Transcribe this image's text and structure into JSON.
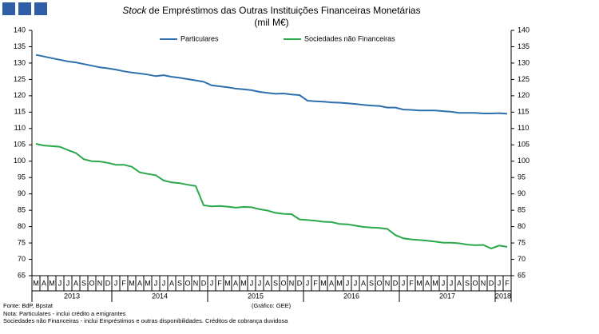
{
  "chart_data": {
    "type": "line",
    "title_italic": "Stock",
    "title": "de Empréstimos das Outras Instituições Financeiras Monetárias",
    "subtitle": "(mil M€)",
    "categories": [
      "M",
      "A",
      "M",
      "J",
      "J",
      "A",
      "S",
      "O",
      "N",
      "D",
      "J",
      "F",
      "M",
      "A",
      "M",
      "J",
      "J",
      "A",
      "S",
      "O",
      "N",
      "D",
      "J",
      "F",
      "M",
      "A",
      "M",
      "J",
      "J",
      "A",
      "S",
      "O",
      "N",
      "D",
      "J",
      "F",
      "M",
      "A",
      "M",
      "J",
      "J",
      "A",
      "S",
      "O",
      "N",
      "D",
      "J",
      "F",
      "M",
      "A",
      "M",
      "J",
      "J",
      "A",
      "S",
      "O",
      "N",
      "D",
      "J",
      "F"
    ],
    "years": [
      "2013",
      "2014",
      "2015",
      "2016",
      "2017",
      "2018"
    ],
    "series": [
      {
        "name": "Particulares",
        "color": "#2e6fad",
        "values": [
          132.5,
          132,
          131.5,
          131,
          130.5,
          130.2,
          129.7,
          129.2,
          128.7,
          128.4,
          128,
          127.5,
          127.1,
          126.8,
          126.5,
          126,
          126.3,
          125.8,
          125.5,
          125.1,
          124.7,
          124.3,
          123.2,
          122.9,
          122.6,
          122.2,
          122,
          121.7,
          121.2,
          120.9,
          120.6,
          120.7,
          120.4,
          120.2,
          118.5,
          118.3,
          118.2,
          118,
          117.9,
          117.7,
          117.5,
          117.2,
          117,
          116.9,
          116.4,
          116.4,
          115.8,
          115.7,
          115.5,
          115.5,
          115.5,
          115.3,
          115.1,
          114.8,
          114.8,
          114.8,
          114.6,
          114.6,
          114.7,
          114.5
        ]
      },
      {
        "name": "Sociedades não Financeiras",
        "color": "#2aa84a",
        "values": [
          105.3,
          104.8,
          104.6,
          104.4,
          103.4,
          102.5,
          100.6,
          100,
          99.9,
          99.5,
          98.9,
          98.9,
          98.3,
          96.6,
          96.1,
          95.7,
          94.1,
          93.5,
          93.3,
          92.8,
          92.4,
          86.5,
          86.2,
          86.3,
          86.1,
          85.8,
          86,
          85.9,
          85.3,
          84.9,
          84.2,
          83.9,
          83.8,
          82.2,
          82,
          81.8,
          81.5,
          81.4,
          80.8,
          80.7,
          80.3,
          79.9,
          79.7,
          79.6,
          79.3,
          77.4,
          76.4,
          76.1,
          75.9,
          75.7,
          75.4,
          75.1,
          75.1,
          74.9,
          74.5,
          74.3,
          74.4,
          73.3,
          74.2,
          73.8
        ]
      }
    ],
    "ylim": [
      65,
      140
    ],
    "yticks": [
      65,
      70,
      75,
      80,
      85,
      90,
      95,
      100,
      105,
      110,
      115,
      120,
      125,
      130,
      135,
      140
    ],
    "y2lim": [
      65,
      140
    ],
    "y2ticks": [
      65,
      70,
      75,
      80,
      85,
      90,
      95,
      100,
      105,
      110,
      115,
      120,
      125,
      130,
      135,
      140
    ],
    "legend": "top",
    "source": "Fonte: BdP, Bpstat",
    "credit": "(Gráfico: GEE)",
    "notes": [
      "Nota: Particulares - inclui crédito a emigrantes",
      "Sociedades não Financeiras - inclui Empréstimos e outras disponibilidades. Créditos de cobrança duvidosa"
    ]
  }
}
